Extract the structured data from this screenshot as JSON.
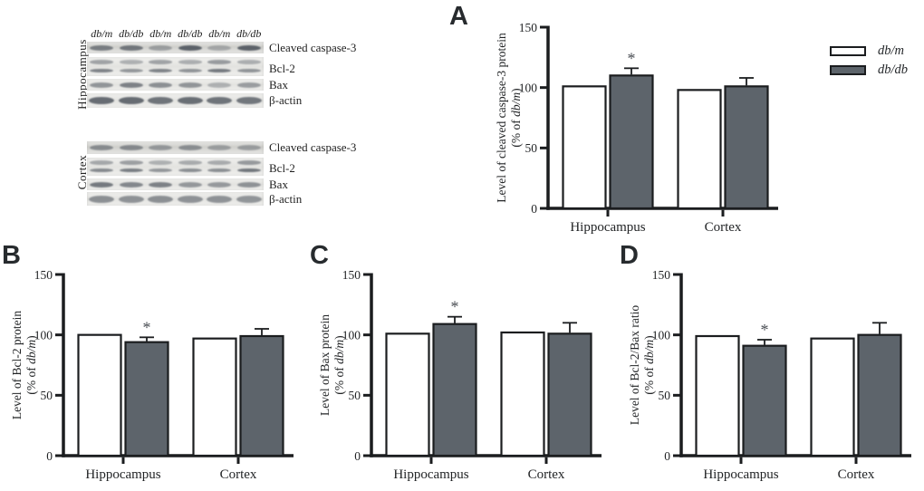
{
  "panels": {
    "A": {
      "letter": "A"
    },
    "B": {
      "letter": "B"
    },
    "C": {
      "letter": "C"
    },
    "D": {
      "letter": "D"
    }
  },
  "legend": {
    "items": [
      {
        "label": "db/m",
        "color": "#ffffff"
      },
      {
        "label": "db/db",
        "color": "#5d646b"
      }
    ]
  },
  "blots": {
    "lane_labels": [
      "db/m",
      "db/db",
      "db/m",
      "db/db",
      "db/m",
      "db/db"
    ],
    "sections": [
      {
        "name": "Hippocampus",
        "rows": [
          {
            "label": "Cleaved caspase-3",
            "double": false,
            "smear": true,
            "intensities": [
              0.72,
              0.78,
              0.45,
              0.95,
              0.38,
              0.95
            ]
          },
          {
            "label": "Bcl-2",
            "double": true,
            "smear": false,
            "intensities": [
              0.62,
              0.5,
              0.62,
              0.52,
              0.68,
              0.52
            ]
          },
          {
            "label": "Bax",
            "double": false,
            "smear": false,
            "intensities": [
              0.58,
              0.72,
              0.62,
              0.58,
              0.38,
              0.52
            ]
          },
          {
            "label": "β-actin",
            "double": false,
            "smear": false,
            "intensities": [
              0.88,
              0.88,
              0.82,
              0.86,
              0.82,
              0.8
            ]
          }
        ]
      },
      {
        "name": "Cortex",
        "rows": [
          {
            "label": "Cleaved caspase-3",
            "double": false,
            "smear": true,
            "intensities": [
              0.6,
              0.62,
              0.5,
              0.58,
              0.45,
              0.46
            ]
          },
          {
            "label": "Bcl-2",
            "double": true,
            "smear": false,
            "intensities": [
              0.58,
              0.65,
              0.5,
              0.55,
              0.55,
              0.7
            ]
          },
          {
            "label": "Bax",
            "double": false,
            "smear": false,
            "intensities": [
              0.78,
              0.68,
              0.72,
              0.56,
              0.55,
              0.6
            ]
          },
          {
            "label": "β-actin",
            "double": false,
            "smear": false,
            "intensities": [
              0.62,
              0.6,
              0.62,
              0.6,
              0.6,
              0.58
            ]
          }
        ]
      }
    ]
  },
  "chart_data": [
    {
      "panel": "A",
      "type": "bar",
      "title": "",
      "ylabel": "Level of cleaved caspase-3 protein",
      "ylabel2": "(% of db/m)",
      "categories": [
        "Hippocampus",
        "Cortex"
      ],
      "series": [
        {
          "name": "db/m",
          "color": "#ffffff",
          "values": [
            101,
            98
          ],
          "errors": [
            0,
            0
          ]
        },
        {
          "name": "db/db",
          "color": "#5d646b",
          "values": [
            110,
            101
          ],
          "errors": [
            6,
            7
          ]
        }
      ],
      "significance": [
        {
          "category_index": 0,
          "series_index": 1,
          "marker": "*"
        }
      ],
      "ylim": [
        0,
        150
      ],
      "yticks": [
        0,
        50,
        100,
        150
      ],
      "legend_position": "top-right-outside",
      "grid": false
    },
    {
      "panel": "B",
      "type": "bar",
      "title": "",
      "ylabel": "Level of Bcl-2 protein",
      "ylabel2": "(% of db/m)",
      "categories": [
        "Hippocampus",
        "Cortex"
      ],
      "series": [
        {
          "name": "db/m",
          "color": "#ffffff",
          "values": [
            100,
            97
          ],
          "errors": [
            0,
            0
          ]
        },
        {
          "name": "db/db",
          "color": "#5d646b",
          "values": [
            94,
            99
          ],
          "errors": [
            4,
            6
          ]
        }
      ],
      "significance": [
        {
          "category_index": 0,
          "series_index": 1,
          "marker": "*"
        }
      ],
      "ylim": [
        0,
        150
      ],
      "yticks": [
        0,
        50,
        100,
        150
      ],
      "legend_position": "none",
      "grid": false
    },
    {
      "panel": "C",
      "type": "bar",
      "title": "",
      "ylabel": "Level of Bax protein",
      "ylabel2": "(% of db/m)",
      "categories": [
        "Hippocampus",
        "Cortex"
      ],
      "series": [
        {
          "name": "db/m",
          "color": "#ffffff",
          "values": [
            101,
            102
          ],
          "errors": [
            0,
            0
          ]
        },
        {
          "name": "db/db",
          "color": "#5d646b",
          "values": [
            109,
            101
          ],
          "errors": [
            6,
            9
          ]
        }
      ],
      "significance": [
        {
          "category_index": 0,
          "series_index": 1,
          "marker": "*"
        }
      ],
      "ylim": [
        0,
        150
      ],
      "yticks": [
        0,
        50,
        100,
        150
      ],
      "legend_position": "none",
      "grid": false
    },
    {
      "panel": "D",
      "type": "bar",
      "title": "",
      "ylabel": "Level of Bcl-2/Bax ratio",
      "ylabel2": "(% of db/m)",
      "categories": [
        "Hippocampus",
        "Cortex"
      ],
      "series": [
        {
          "name": "db/m",
          "color": "#ffffff",
          "values": [
            99,
            97
          ],
          "errors": [
            0,
            0
          ]
        },
        {
          "name": "db/db",
          "color": "#5d646b",
          "values": [
            91,
            100
          ],
          "errors": [
            5,
            10
          ]
        }
      ],
      "significance": [
        {
          "category_index": 0,
          "series_index": 1,
          "marker": "*"
        }
      ],
      "ylim": [
        0,
        150
      ],
      "yticks": [
        0,
        50,
        100,
        150
      ],
      "legend_position": "none",
      "grid": false
    }
  ]
}
